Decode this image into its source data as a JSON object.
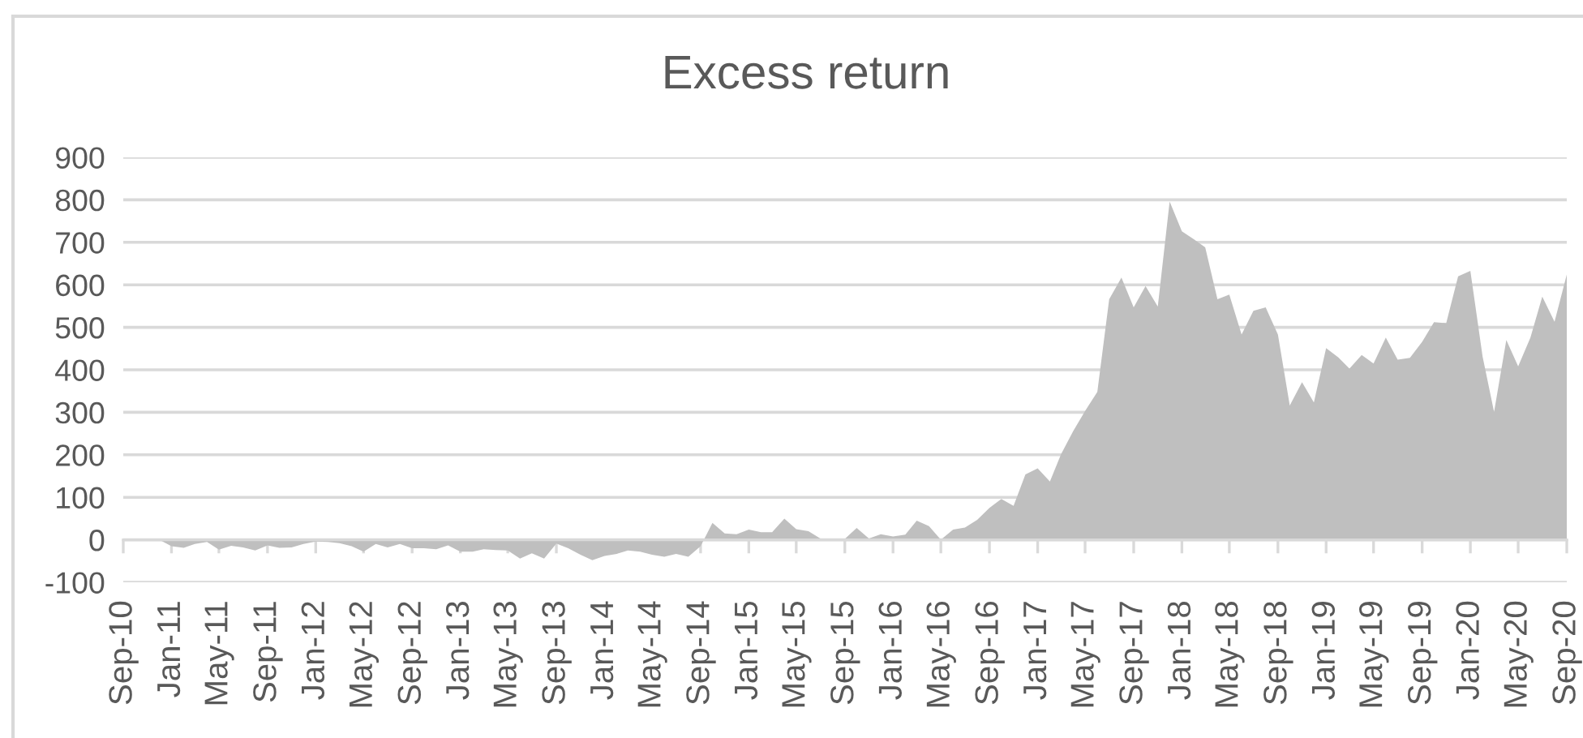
{
  "chart_data": {
    "type": "area",
    "title": "Excess return",
    "x": [
      "2010-09",
      "2010-10",
      "2010-11",
      "2010-12",
      "2011-01",
      "2011-02",
      "2011-03",
      "2011-04",
      "2011-05",
      "2011-06",
      "2011-07",
      "2011-08",
      "2011-09",
      "2011-10",
      "2011-11",
      "2011-12",
      "2012-01",
      "2012-02",
      "2012-03",
      "2012-04",
      "2012-05",
      "2012-06",
      "2012-07",
      "2012-08",
      "2012-09",
      "2012-10",
      "2012-11",
      "2012-12",
      "2013-01",
      "2013-02",
      "2013-03",
      "2013-04",
      "2013-05",
      "2013-06",
      "2013-07",
      "2013-08",
      "2013-09",
      "2013-10",
      "2013-11",
      "2013-12",
      "2014-01",
      "2014-02",
      "2014-03",
      "2014-04",
      "2014-05",
      "2014-06",
      "2014-07",
      "2014-08",
      "2014-09",
      "2014-10",
      "2014-11",
      "2014-12",
      "2015-01",
      "2015-02",
      "2015-03",
      "2015-04",
      "2015-05",
      "2015-06",
      "2015-07",
      "2015-08",
      "2015-09",
      "2015-10",
      "2015-11",
      "2015-12",
      "2016-01",
      "2016-02",
      "2016-03",
      "2016-04",
      "2016-05",
      "2016-06",
      "2016-07",
      "2016-08",
      "2016-09",
      "2016-10",
      "2016-11",
      "2016-12",
      "2017-01",
      "2017-02",
      "2017-03",
      "2017-04",
      "2017-05",
      "2017-06",
      "2017-07",
      "2017-08",
      "2017-09",
      "2017-10",
      "2017-11",
      "2017-12",
      "2018-01",
      "2018-02",
      "2018-03",
      "2018-04",
      "2018-05",
      "2018-06",
      "2018-07",
      "2018-08",
      "2018-09",
      "2018-10",
      "2018-11",
      "2018-12",
      "2019-01",
      "2019-02",
      "2019-03",
      "2019-04",
      "2019-05",
      "2019-06",
      "2019-07",
      "2019-08",
      "2019-09",
      "2019-10",
      "2019-11",
      "2019-12",
      "2020-01",
      "2020-02",
      "2020-03",
      "2020-04",
      "2020-05",
      "2020-06",
      "2020-07",
      "2020-08",
      "2020-09"
    ],
    "series": [
      {
        "color": "#bfbfbf",
        "values": [
          0,
          0,
          0,
          0,
          -15,
          -19,
          -10,
          -5,
          -23,
          -14,
          -18,
          -25,
          -13,
          -19,
          -18,
          -10,
          -4,
          -5,
          -8,
          -15,
          -28,
          -10,
          -18,
          -10,
          -20,
          -20,
          -22,
          -13,
          -28,
          -28,
          -22,
          -24,
          -25,
          -44,
          -32,
          -44,
          -9,
          -20,
          -35,
          -48,
          -38,
          -33,
          -25,
          -28,
          -35,
          -40,
          -33,
          -40,
          -15,
          40,
          15,
          13,
          24,
          18,
          18,
          50,
          25,
          20,
          3,
          2,
          2,
          28,
          3,
          13,
          8,
          12,
          45,
          32,
          0,
          24,
          29,
          47,
          75,
          96,
          80,
          154,
          168,
          137,
          201,
          256,
          303,
          348,
          566,
          617,
          547,
          597,
          549,
          796,
          726,
          707,
          688,
          566,
          577,
          483,
          539,
          547,
          483,
          316,
          371,
          323,
          451,
          429,
          403,
          435,
          415,
          476,
          424,
          428,
          466,
          512,
          510,
          620,
          633,
          431,
          301,
          470,
          408,
          476,
          572,
          513,
          624
        ]
      }
    ],
    "xlim": [
      "2010-09",
      "2020-09"
    ],
    "xticks": [
      {
        "value": "2010-09",
        "label": "Sep-10"
      },
      {
        "value": "2011-01",
        "label": "Jan-11"
      },
      {
        "value": "2011-05",
        "label": "May-11"
      },
      {
        "value": "2011-09",
        "label": "Sep-11"
      },
      {
        "value": "2012-01",
        "label": "Jan-12"
      },
      {
        "value": "2012-05",
        "label": "May-12"
      },
      {
        "value": "2012-09",
        "label": "Sep-12"
      },
      {
        "value": "2013-01",
        "label": "Jan-13"
      },
      {
        "value": "2013-05",
        "label": "May-13"
      },
      {
        "value": "2013-09",
        "label": "Sep-13"
      },
      {
        "value": "2014-01",
        "label": "Jan-14"
      },
      {
        "value": "2014-05",
        "label": "May-14"
      },
      {
        "value": "2014-09",
        "label": "Sep-14"
      },
      {
        "value": "2015-01",
        "label": "Jan-15"
      },
      {
        "value": "2015-05",
        "label": "May-15"
      },
      {
        "value": "2015-09",
        "label": "Sep-15"
      },
      {
        "value": "2016-01",
        "label": "Jan-16"
      },
      {
        "value": "2016-05",
        "label": "May-16"
      },
      {
        "value": "2016-09",
        "label": "Sep-16"
      },
      {
        "value": "2017-01",
        "label": "Jan-17"
      },
      {
        "value": "2017-05",
        "label": "May-17"
      },
      {
        "value": "2017-09",
        "label": "Sep-17"
      },
      {
        "value": "2018-01",
        "label": "Jan-18"
      },
      {
        "value": "2018-05",
        "label": "May-18"
      },
      {
        "value": "2018-09",
        "label": "Sep-18"
      },
      {
        "value": "2019-01",
        "label": "Jan-19"
      },
      {
        "value": "2019-05",
        "label": "May-19"
      },
      {
        "value": "2019-09",
        "label": "Sep-19"
      },
      {
        "value": "2020-01",
        "label": "Jan-20"
      },
      {
        "value": "2020-05",
        "label": "May-20"
      },
      {
        "value": "2020-09",
        "label": "Sep-20"
      }
    ],
    "ylim": [
      -100,
      900
    ],
    "yticks": [
      -100,
      0,
      100,
      200,
      300,
      400,
      500,
      600,
      700,
      800,
      900
    ],
    "grid": "y"
  }
}
